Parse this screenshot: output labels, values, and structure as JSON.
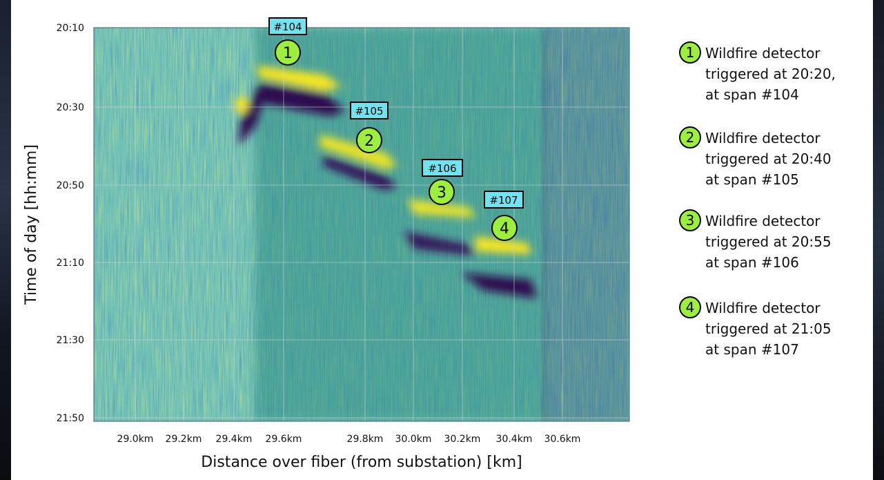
{
  "chart_data": {
    "type": "heatmap",
    "title": "",
    "xlabel": "Distance over fiber (from substation) [km]",
    "ylabel": "Time of day [hh:mm]",
    "x_ticks": [
      "29.0km",
      "29.2km",
      "29.4km",
      "29.6km",
      "29.8km",
      "30.0km",
      "30.2km",
      "30.4km",
      "30.6km"
    ],
    "y_ticks": [
      "20:10",
      "20:30",
      "20:50",
      "21:10",
      "21:30",
      "21:50"
    ],
    "colormap": "viridis",
    "grid": true,
    "events": [
      {
        "label": "#104",
        "marker": "1",
        "distance_km": 29.55,
        "time": "20:20",
        "text_line1": "Wildfire detector",
        "text_line2": "triggered at 20:20,",
        "text_line3": "at span #104"
      },
      {
        "label": "#105",
        "marker": "2",
        "distance_km": 29.83,
        "time": "20:40",
        "text_line1": "Wildfire detector",
        "text_line2": "triggered at 20:40",
        "text_line3": "at span #105"
      },
      {
        "label": "#106",
        "marker": "3",
        "distance_km": 30.06,
        "time": "20:55",
        "text_line1": "Wildfire detector",
        "text_line2": "triggered at 20:55",
        "text_line3": "at span #106"
      },
      {
        "label": "#107",
        "marker": "4",
        "distance_km": 30.29,
        "time": "21:05",
        "text_line1": "Wildfire detector",
        "text_line2": "triggered at 21:05",
        "text_line3": "at span #107"
      }
    ]
  },
  "colors": {
    "marker_fill": "#9cf03b",
    "label_fill": "#6fe3f0",
    "viridis_dark": "#2e0f4f",
    "viridis_mid": "#2a8b82",
    "viridis_yellow": "#f7e522"
  }
}
